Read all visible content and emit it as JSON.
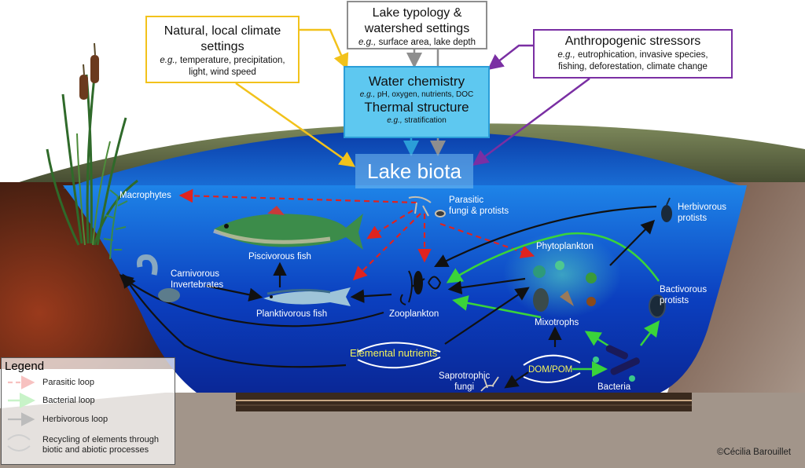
{
  "drivers": {
    "climate": {
      "title_1": "Natural, local climate",
      "title_2": "settings",
      "eg_prefix": "e.g.,",
      "eg_1": " temperature, precipitation,",
      "eg_2": "light, wind speed",
      "color": "#f2c21b"
    },
    "lake_typology": {
      "title_1": "Lake typology &",
      "title_2": "watershed settings",
      "eg_prefix": "e.g.,",
      "eg_1": " surface area, lake depth",
      "color": "#8e8e8e"
    },
    "anthropogenic": {
      "title_1": "Anthropogenic stressors",
      "eg_prefix": "e.g.,",
      "eg_1": " eutrophication, invasive species,",
      "eg_2": "fishing, deforestation, climate change",
      "color": "#7a2fa3"
    },
    "water": {
      "title_1": "Water chemistry",
      "eg_prefix": "e.g.,",
      "eg_1": " pH, oxygen, nutrients, DOC",
      "title_2": "Thermal structure",
      "eg_prefix_2": "e.g.,",
      "eg_2": " stratification",
      "color": "#2b9ed8"
    }
  },
  "center_label": "Lake biota",
  "organisms": {
    "macrophytes": "Macrophytes",
    "parasitic_1": "Parasitic",
    "parasitic_2": "fungi & protists",
    "herbivorous_1": "Herbivorous",
    "herbivorous_2": "protists",
    "piscivorous": "Piscivorous fish",
    "phytoplankton": "Phytoplankton",
    "carnivorous_1": "Carnivorous",
    "carnivorous_2": "Invertebrates",
    "bactivorous_1": "Bactivorous",
    "bactivorous_2": "protists",
    "planktivorous": "Planktivorous fish",
    "zooplankton": "Zooplankton",
    "mixotrophs": "Mixotrophs",
    "elemental": "Elemental nutrients",
    "dompom": "DOM/POM",
    "saprotrophic_1": "Saprotrophic",
    "saprotrophic_2": "fungi",
    "bacteria": "Bacteria"
  },
  "legend": {
    "title": "Legend",
    "items": [
      {
        "label": "Parasitic loop",
        "color": "#e0231f"
      },
      {
        "label": "Bacterial loop",
        "color": "#3ad43a"
      },
      {
        "label": "Herbivorous loop",
        "color": "#111111"
      },
      {
        "label_1": "Recycling of elements through",
        "label_2": "biotic and abiotic processes"
      }
    ]
  },
  "credit": "©Cécilia Barouillet"
}
